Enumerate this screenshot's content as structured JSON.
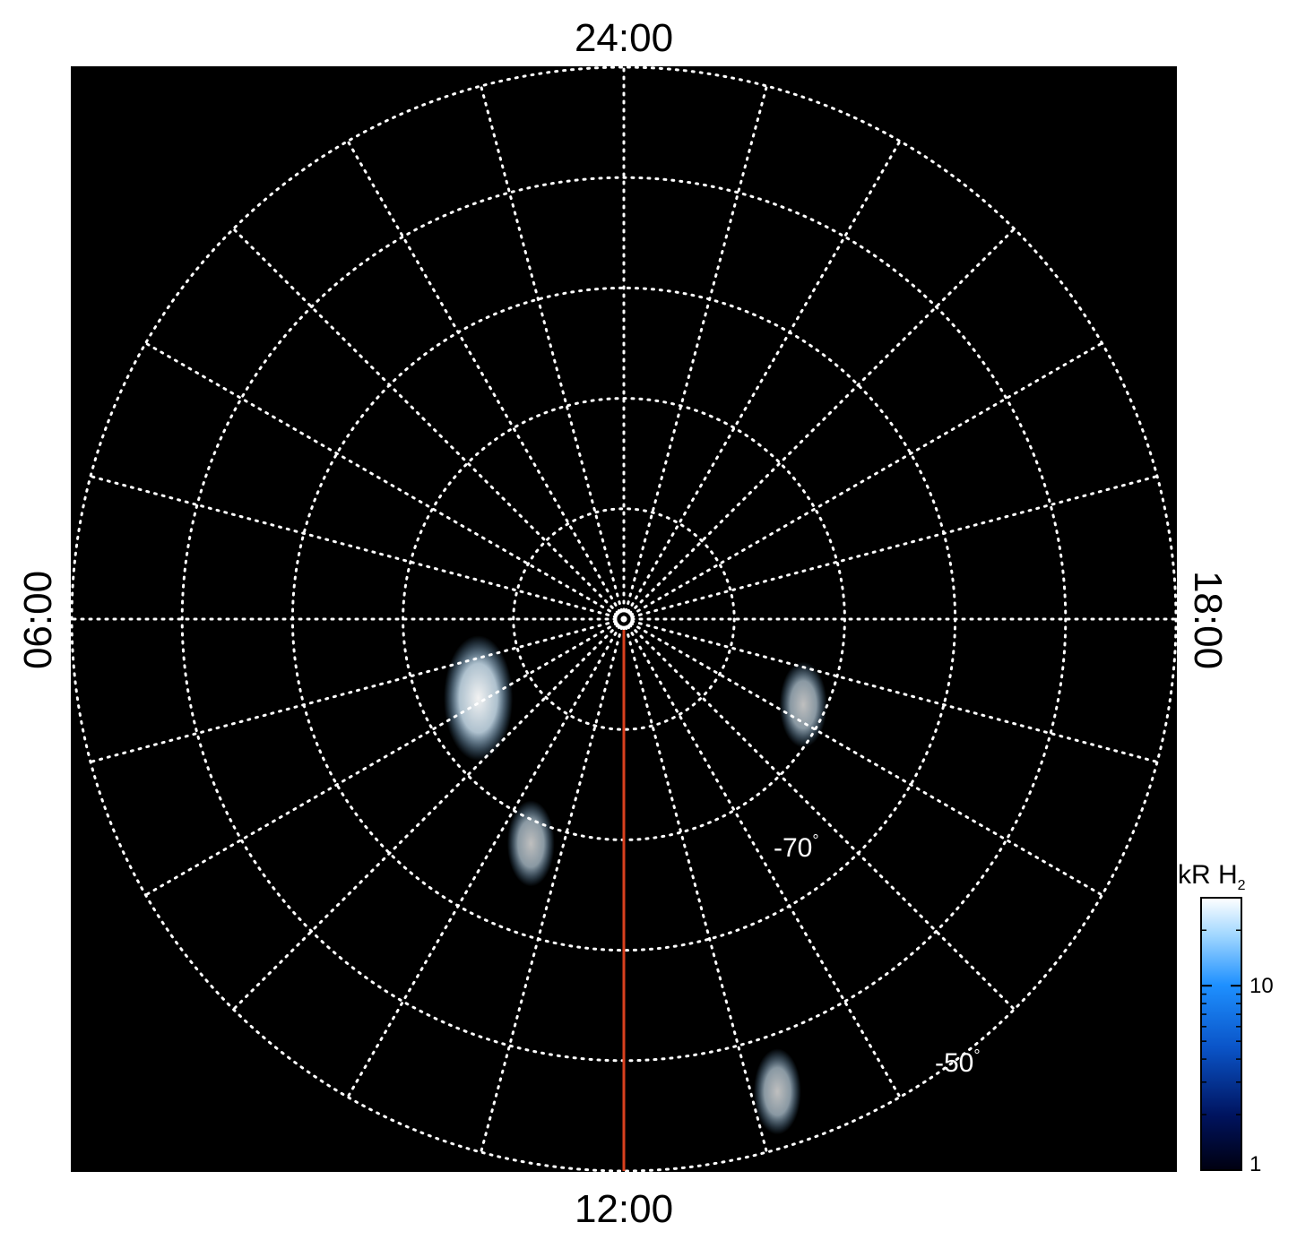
{
  "chart_data": {
    "type": "heatmap",
    "projection": "polar",
    "hemisphere": "south",
    "local_time_labels": {
      "top": "24:00",
      "bottom": "12:00",
      "left": "06:00",
      "right": "18:00"
    },
    "latitude_labels": [
      {
        "text": "-70",
        "value": -70
      },
      {
        "text": "-50",
        "value": -50
      }
    ],
    "degree_symbol": "°",
    "latitude_circles": [
      -80,
      -70,
      -60,
      -50,
      -40
    ],
    "grid_meridian_step_hours": 1,
    "grid": true,
    "grid_color": "#ffffff",
    "background_color": "#000000",
    "observed_region": "local times 06:00 through 12:00 to 18:00 (dayside half)",
    "reference_meridian_hours": 12,
    "reference_line_color": "#d9401e",
    "pole_marker": true,
    "bright_features": [
      {
        "local_time_hours": 7.9,
        "latitude": -75,
        "level": "max"
      },
      {
        "local_time_hours": 16.3,
        "latitude": -72,
        "level": "high"
      },
      {
        "local_time_hours": 10.5,
        "latitude": -68,
        "level": "high"
      },
      {
        "local_time_hours": 13.2,
        "latitude": -45,
        "level": "high"
      }
    ],
    "colorbar": {
      "title_main": "kR H",
      "title_sub": "2",
      "scale": "log",
      "range": [
        1,
        30
      ],
      "tick_labels": [
        {
          "text": "1",
          "value": 1
        },
        {
          "text": "10",
          "value": 10
        }
      ],
      "colors": [
        "#000010",
        "#00135e",
        "#0a54c8",
        "#1e90ff",
        "#9fd6ff",
        "#ffffff"
      ]
    }
  }
}
